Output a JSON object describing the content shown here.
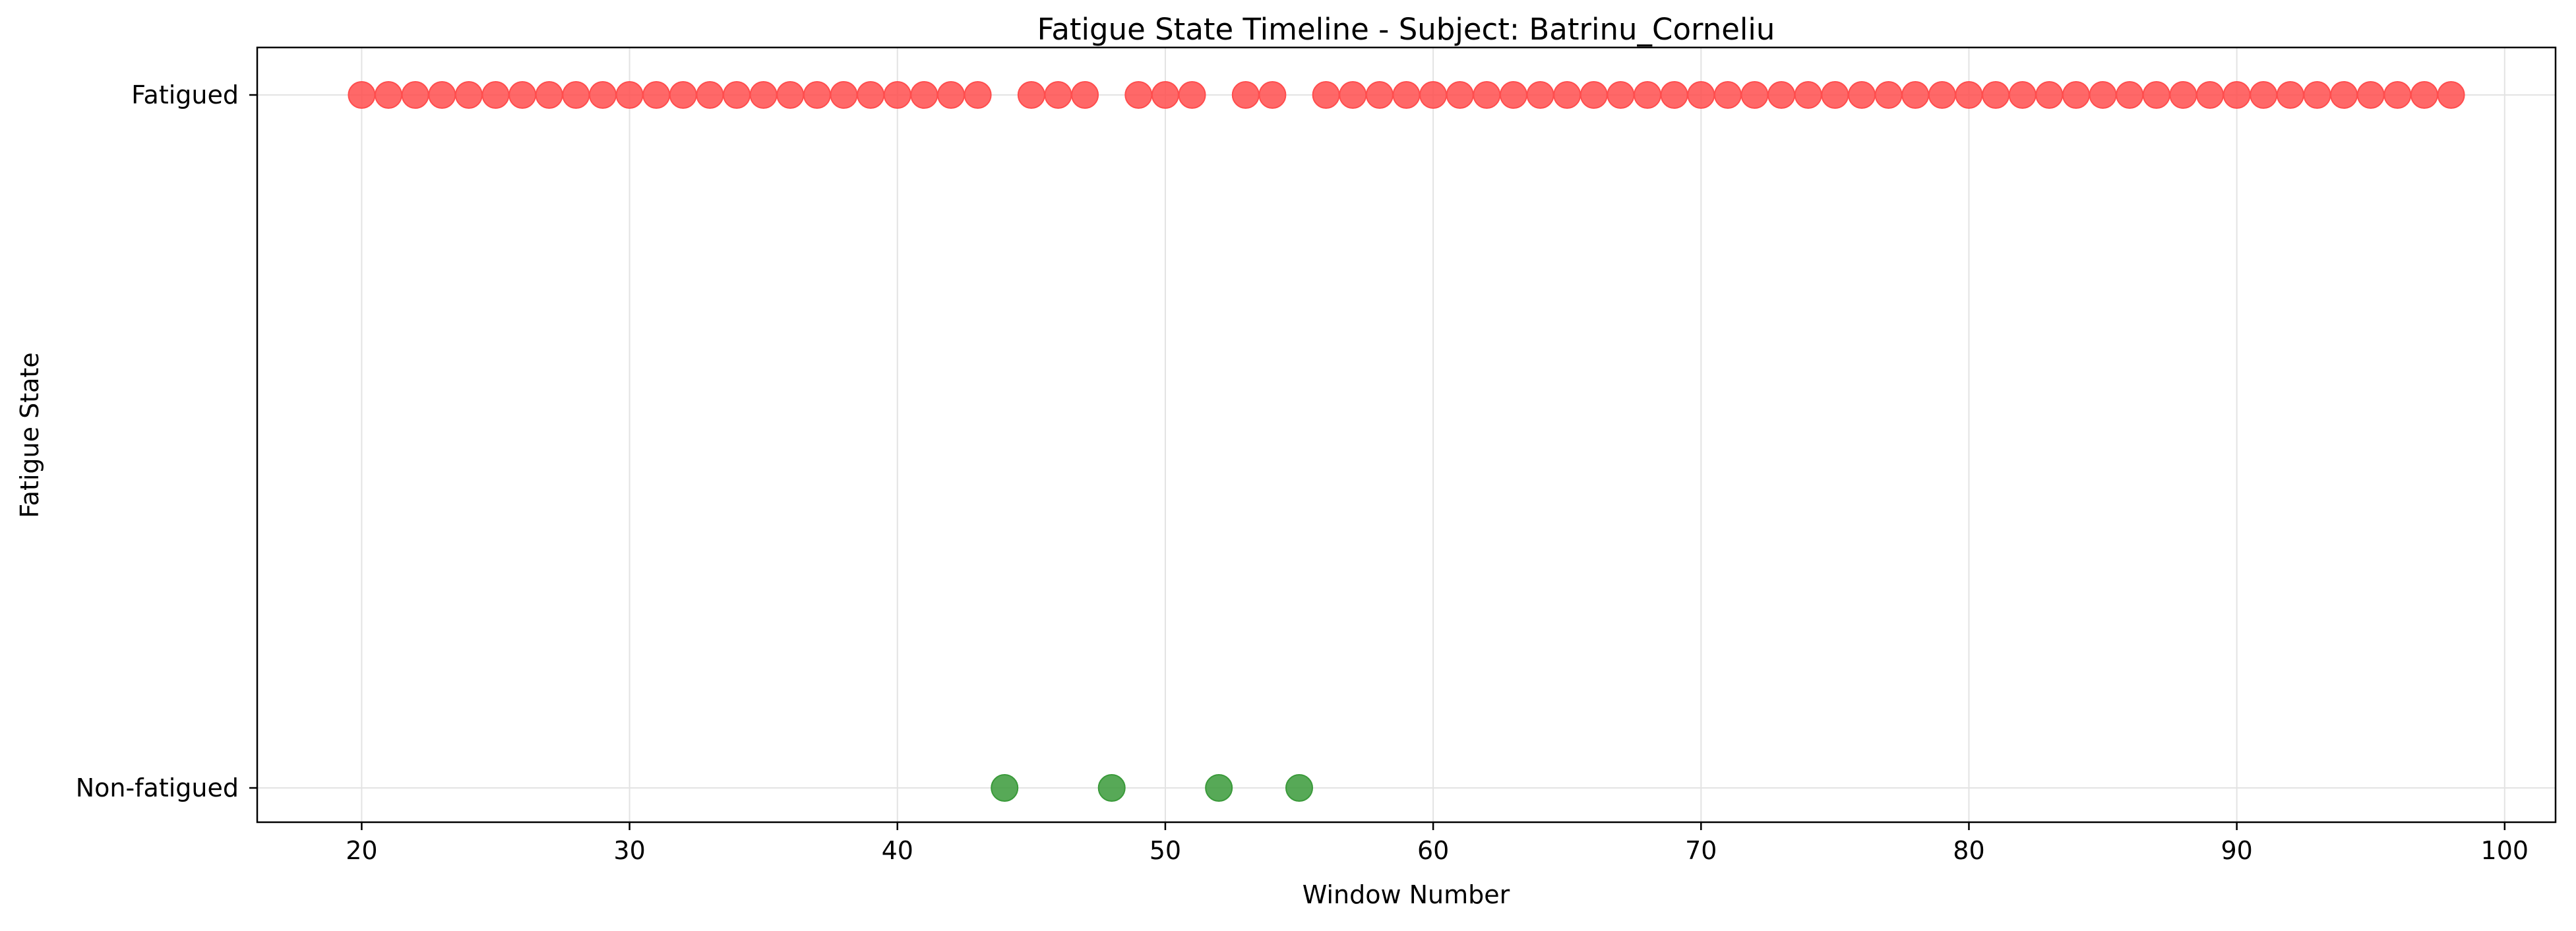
{
  "chart_data": {
    "type": "scatter",
    "title": "Fatigue State Timeline - Subject: Batrinu_Corneliu",
    "xlabel": "Window Number",
    "ylabel": "Fatigue State",
    "xlim": [
      16.1,
      101.9
    ],
    "xticks": [
      20,
      30,
      40,
      50,
      60,
      70,
      80,
      90,
      100
    ],
    "y_categories": [
      "Non-fatigued",
      "Fatigued"
    ],
    "grid": true,
    "series": [
      {
        "state": "Fatigued",
        "color": "#ff4d4d",
        "x": [
          20,
          21,
          22,
          23,
          24,
          25,
          26,
          27,
          28,
          29,
          30,
          31,
          32,
          33,
          34,
          35,
          36,
          37,
          38,
          39,
          40,
          41,
          42,
          43,
          45,
          46,
          47,
          49,
          50,
          51,
          53,
          54,
          56,
          57,
          58,
          59,
          60,
          61,
          62,
          63,
          64,
          65,
          66,
          67,
          68,
          69,
          70,
          71,
          72,
          73,
          74,
          75,
          76,
          77,
          78,
          79,
          80,
          81,
          82,
          83,
          84,
          85,
          86,
          87,
          88,
          89,
          90,
          91,
          92,
          93,
          94,
          95,
          96,
          97,
          98
        ]
      },
      {
        "state": "Non-fatigued",
        "color": "#3a9a3a",
        "x": [
          44,
          48,
          52,
          55
        ]
      }
    ]
  }
}
